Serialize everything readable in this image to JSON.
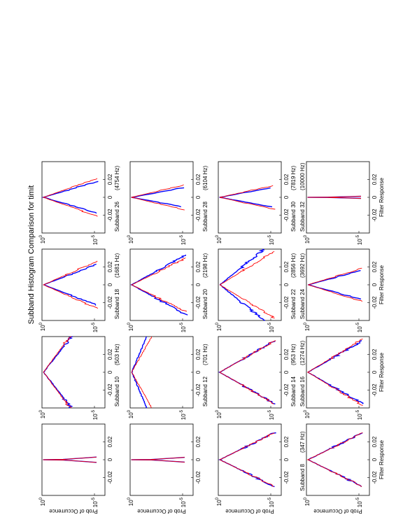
{
  "figure_title": "Subband Histogram Comparison for timit",
  "chart_data": {
    "type": "line",
    "title": "Subband Histogram Comparison for timit",
    "xlabel": "Filter Response",
    "ylabel": "Prob of Occurrence",
    "x_ticks": [
      "-0.02",
      "0",
      "0.02"
    ],
    "xlim": [
      -0.04,
      0.04
    ],
    "ylim": [
      1e-06,
      1
    ],
    "yscale": "log",
    "series_colors": [
      "#0000ff",
      "#ff0000"
    ],
    "panels": [
      {
        "subband": "",
        "freq": "",
        "shape": "spike",
        "wb": 0.001,
        "wr": 0.001
      },
      {
        "subband": "Subband 10",
        "freq": "(503 Hz)",
        "shape": "spread",
        "wb": 0.015,
        "wr": 0.016
      },
      {
        "subband": "Subband 18",
        "freq": "(1681 Hz)",
        "shape": "spread",
        "wb": 0.0045,
        "wr": 0.0052
      },
      {
        "subband": "Subband 26",
        "freq": "(4754 Hz)",
        "shape": "spread",
        "wb": 0.0035,
        "wr": 0.0042
      },
      {
        "subband": "",
        "freq": "",
        "shape": "spike",
        "wb": 0.0009,
        "wr": 0.0009
      },
      {
        "subband": "Subband 12",
        "freq": "(701 Hz)",
        "shape": "spread",
        "wb": 0.028,
        "wr": 0.021
      },
      {
        "subband": "Subband 20",
        "freq": "(2198 Hz)",
        "shape": "spread",
        "wb": 0.0065,
        "wr": 0.0058
      },
      {
        "subband": "Subband 28",
        "freq": "(6104 Hz)",
        "shape": "spread",
        "wb": 0.0022,
        "wr": 0.0028
      },
      {
        "subband": "",
        "freq": "",
        "shape": "spread",
        "wb": 0.0058,
        "wr": 0.0058
      },
      {
        "subband": "Subband 14",
        "freq": "(953 Hz)",
        "shape": "spread",
        "wb": 0.0068,
        "wr": 0.0068
      },
      {
        "subband": "Subband 22",
        "freq": "(2856 Hz)",
        "shape": "spread",
        "wb": 0.0095,
        "wr": 0.0072
      },
      {
        "subband": "Subband 30",
        "freq": "(7819 Hz)",
        "shape": "spread",
        "wb": 0.0022,
        "wr": 0.0026
      },
      {
        "subband": "Subband 8",
        "freq": "(347 Hz)",
        "shape": "spread",
        "wb": 0.0058,
        "wr": 0.0058
      },
      {
        "subband": "Subband 16",
        "freq": "(1274 Hz)",
        "shape": "spread",
        "wb": 0.0068,
        "wr": 0.0072
      },
      {
        "subband": "Subband 24",
        "freq": "(3692 Hz)",
        "shape": "spread",
        "wb": 0.0032,
        "wr": 0.0036
      },
      {
        "subband": "Subband 32",
        "freq": "(10000 Hz)",
        "shape": "spike",
        "wb": 0.0004,
        "wr": 0.0004
      }
    ]
  }
}
